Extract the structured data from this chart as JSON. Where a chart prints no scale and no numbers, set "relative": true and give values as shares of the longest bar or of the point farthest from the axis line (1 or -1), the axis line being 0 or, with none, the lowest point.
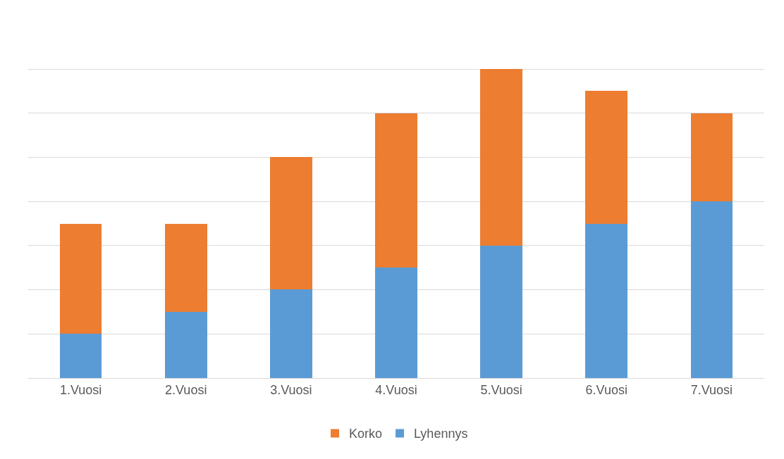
{
  "chart_data": {
    "type": "bar",
    "stacked": true,
    "relative": true,
    "grid": "y",
    "legend": "bottom",
    "categories": [
      "1.Vuosi",
      "2.Vuosi",
      "3.Vuosi",
      "4.Vuosi",
      "5.Vuosi",
      "6.Vuosi",
      "7.Vuosi"
    ],
    "series": [
      {
        "name": "Lyhennys",
        "color": "#5b9bd5",
        "values": [
          0.143,
          0.214,
          0.286,
          0.357,
          0.429,
          0.5,
          0.571
        ]
      },
      {
        "name": "Korko",
        "color": "#ed7d31",
        "values": [
          0.357,
          0.286,
          0.429,
          0.5,
          0.571,
          0.429,
          0.286
        ]
      }
    ]
  }
}
